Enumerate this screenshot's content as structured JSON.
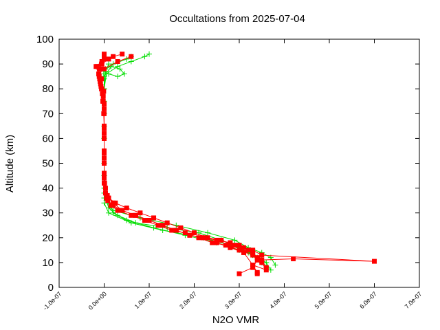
{
  "chart_data": {
    "type": "scatter",
    "title": "Occultations from 2025-07-04",
    "xlabel": "N2O VMR",
    "ylabel": "Altitude (km)",
    "xlim": [
      -1e-07,
      7e-07
    ],
    "ylim": [
      0,
      100
    ],
    "x_tick_labels": [
      "-1.0e-07",
      "0.0e+00",
      "1.0e-07",
      "2.0e-07",
      "3.0e-07",
      "4.0e-07",
      "5.0e-07",
      "6.0e-07",
      "7.0e-07"
    ],
    "x_ticks": [
      -1e-07,
      0,
      1e-07,
      2e-07,
      3e-07,
      4e-07,
      5e-07,
      6e-07,
      7e-07
    ],
    "y_ticks": [
      0,
      10,
      20,
      30,
      40,
      50,
      60,
      70,
      80,
      90,
      100
    ],
    "y_tick_labels": [
      "0",
      "10",
      "20",
      "30",
      "40",
      "50",
      "60",
      "70",
      "80",
      "90",
      "100"
    ],
    "grid": false,
    "series": [
      {
        "color": "#00dd00",
        "marker": "plus",
        "line": true,
        "profiles": [
          {
            "x": [
              3.7e-07,
              3.6e-07,
              3.4e-07,
              3.2e-07,
              2.8e-07,
              2.2e-07,
              1.3e-07,
              6e-08,
              1e-08,
              0,
              0,
              0,
              0,
              0,
              0,
              0,
              -1e-09,
              3e-09,
              1.5e-08,
              3.5e-08,
              4.5e-08,
              3e-08,
              1e-08
            ],
            "y": [
              7,
              10,
              12,
              14,
              17,
              20,
              23,
              26,
              30,
              34,
              40,
              50,
              60,
              70,
              80,
              84,
              86,
              88,
              89,
              88,
              86,
              85,
              86
            ]
          },
          {
            "x": [
              3.6e-07,
              3.5e-07,
              3.3e-07,
              3e-07,
              2.5e-07,
              1.8e-07,
              1.1e-07,
              5e-08,
              2e-08,
              5e-09,
              1e-09,
              0,
              0,
              0,
              0,
              5e-09,
              3e-08,
              6e-08,
              9e-08,
              1e-07
            ],
            "y": [
              8,
              11,
              13,
              15,
              18,
              21,
              24,
              27,
              30,
              35,
              40,
              50,
              60,
              70,
              80,
              86,
              89,
              91,
              93,
              94
            ]
          },
          {
            "x": [
              3.8e-07,
              3.7e-07,
              3.5e-07,
              3.2e-07,
              2.9e-07,
              2.3e-07,
              1.6e-07,
              8e-08,
              2e-08,
              0,
              0,
              0,
              0,
              0,
              2e-08,
              5e-08,
              6e-08
            ],
            "y": [
              9,
              12,
              14,
              16,
              19,
              22,
              25,
              28,
              31,
              36,
              45,
              60,
              75,
              85,
              90,
              92,
              93
            ]
          },
          {
            "x": [
              3.5e-07,
              3.3e-07,
              3e-07,
              2.6e-07,
              2.1e-07,
              1.4e-07,
              7e-08,
              3e-08,
              1e-08,
              0,
              0,
              0,
              0,
              3e-09,
              1e-08
            ],
            "y": [
              10,
              13,
              16,
              19,
              22,
              24,
              26,
              29,
              32,
              38,
              50,
              65,
              80,
              87,
              90
            ]
          }
        ]
      },
      {
        "color": "#ff0000",
        "marker": "square",
        "line": true,
        "profiles": [
          {
            "x": [
              3.4e-07,
              3.3e-07,
              3.6e-07,
              3.5e-07,
              3.4e-07,
              3.3e-07,
              3.2e-07,
              3e-07,
              2.8e-07,
              2.5e-07,
              2.2e-07,
              1.9e-07,
              1.6e-07,
              1.3e-07,
              1e-07,
              7e-08,
              4e-08,
              2e-08,
              8e-09,
              3e-09,
              1e-09,
              0,
              0,
              0,
              0,
              0,
              -1e-09,
              -2e-09,
              -4e-09,
              -6e-09,
              -8e-09,
              -1e-08,
              -1.2e-08,
              0,
              3e-08,
              6e-08
            ],
            "y": [
              6,
              9,
              7,
              10,
              12,
              14,
              15,
              17,
              18,
              19,
              20,
              21,
              23,
              25,
              27,
              29,
              31,
              33,
              35,
              38,
              42,
              46,
              50,
              55,
              60,
              65,
              70,
              75,
              78,
              80,
              82,
              84,
              86,
              88,
              91,
              93
            ]
          },
          {
            "x": [
              3e-07,
              3.3e-07,
              3.4e-07,
              4.2e-07,
              6e-07,
              3.5e-07,
              3.3e-07,
              3.1e-07,
              2.9e-07,
              2.6e-07,
              2.3e-07,
              2e-07,
              1.7e-07,
              1.4e-07,
              1.1e-07,
              8e-08,
              5e-08,
              2.5e-08,
              1e-08,
              3e-09,
              0,
              0,
              0,
              0,
              -2e-09,
              -5e-09,
              -9e-09,
              -1.2e-08,
              -1.5e-08,
              -6e-09,
              0,
              2e-08,
              4e-08
            ],
            "y": [
              5.5,
              8,
              11,
              11.5,
              10.5,
              13,
              15,
              16,
              17,
              19,
              20,
              22,
              24,
              26,
              28,
              30,
              32,
              34,
              36,
              40,
              45,
              52,
              62,
              72,
              77,
              80,
              83,
              86,
              89,
              90,
              92,
              93,
              94
            ]
          },
          {
            "x": [
              3.6e-07,
              3.5e-07,
              3.3e-07,
              3e-07,
              2.7e-07,
              2.4e-07,
              2.1e-07,
              1.8e-07,
              1.5e-07,
              1.2e-07,
              9e-08,
              6e-08,
              3e-08,
              1.5e-08,
              5e-09,
              0,
              0,
              0,
              0,
              -3e-09,
              -7e-09,
              -1.1e-08,
              -1.8e-08,
              -5e-09,
              0,
              0
            ],
            "y": [
              8,
              11,
              13,
              15,
              17,
              18,
              20,
              22,
              23,
              25,
              27,
              29,
              31,
              33,
              36,
              42,
              50,
              60,
              70,
              75,
              81,
              85,
              89,
              91,
              93,
              94
            ]
          },
          {
            "x": [
              3.4e-07,
              3.3e-07,
              3.1e-07,
              2.8e-07,
              2.5e-07,
              2.2e-07,
              1.9e-07,
              1.6e-07,
              1.3e-07,
              1e-07,
              7e-08,
              4e-08,
              2e-08,
              7e-09,
              0,
              0,
              0,
              0,
              -1e-09,
              -6e-09,
              -1e-08,
              -5e-09,
              1e-08
            ],
            "y": [
              5.5,
              9,
              14,
              16,
              18,
              20,
              21,
              23,
              25,
              27,
              29,
              31,
              34,
              37,
              44,
              54,
              64,
              74,
              79,
              84,
              88,
              90,
              92
            ]
          }
        ]
      }
    ]
  }
}
